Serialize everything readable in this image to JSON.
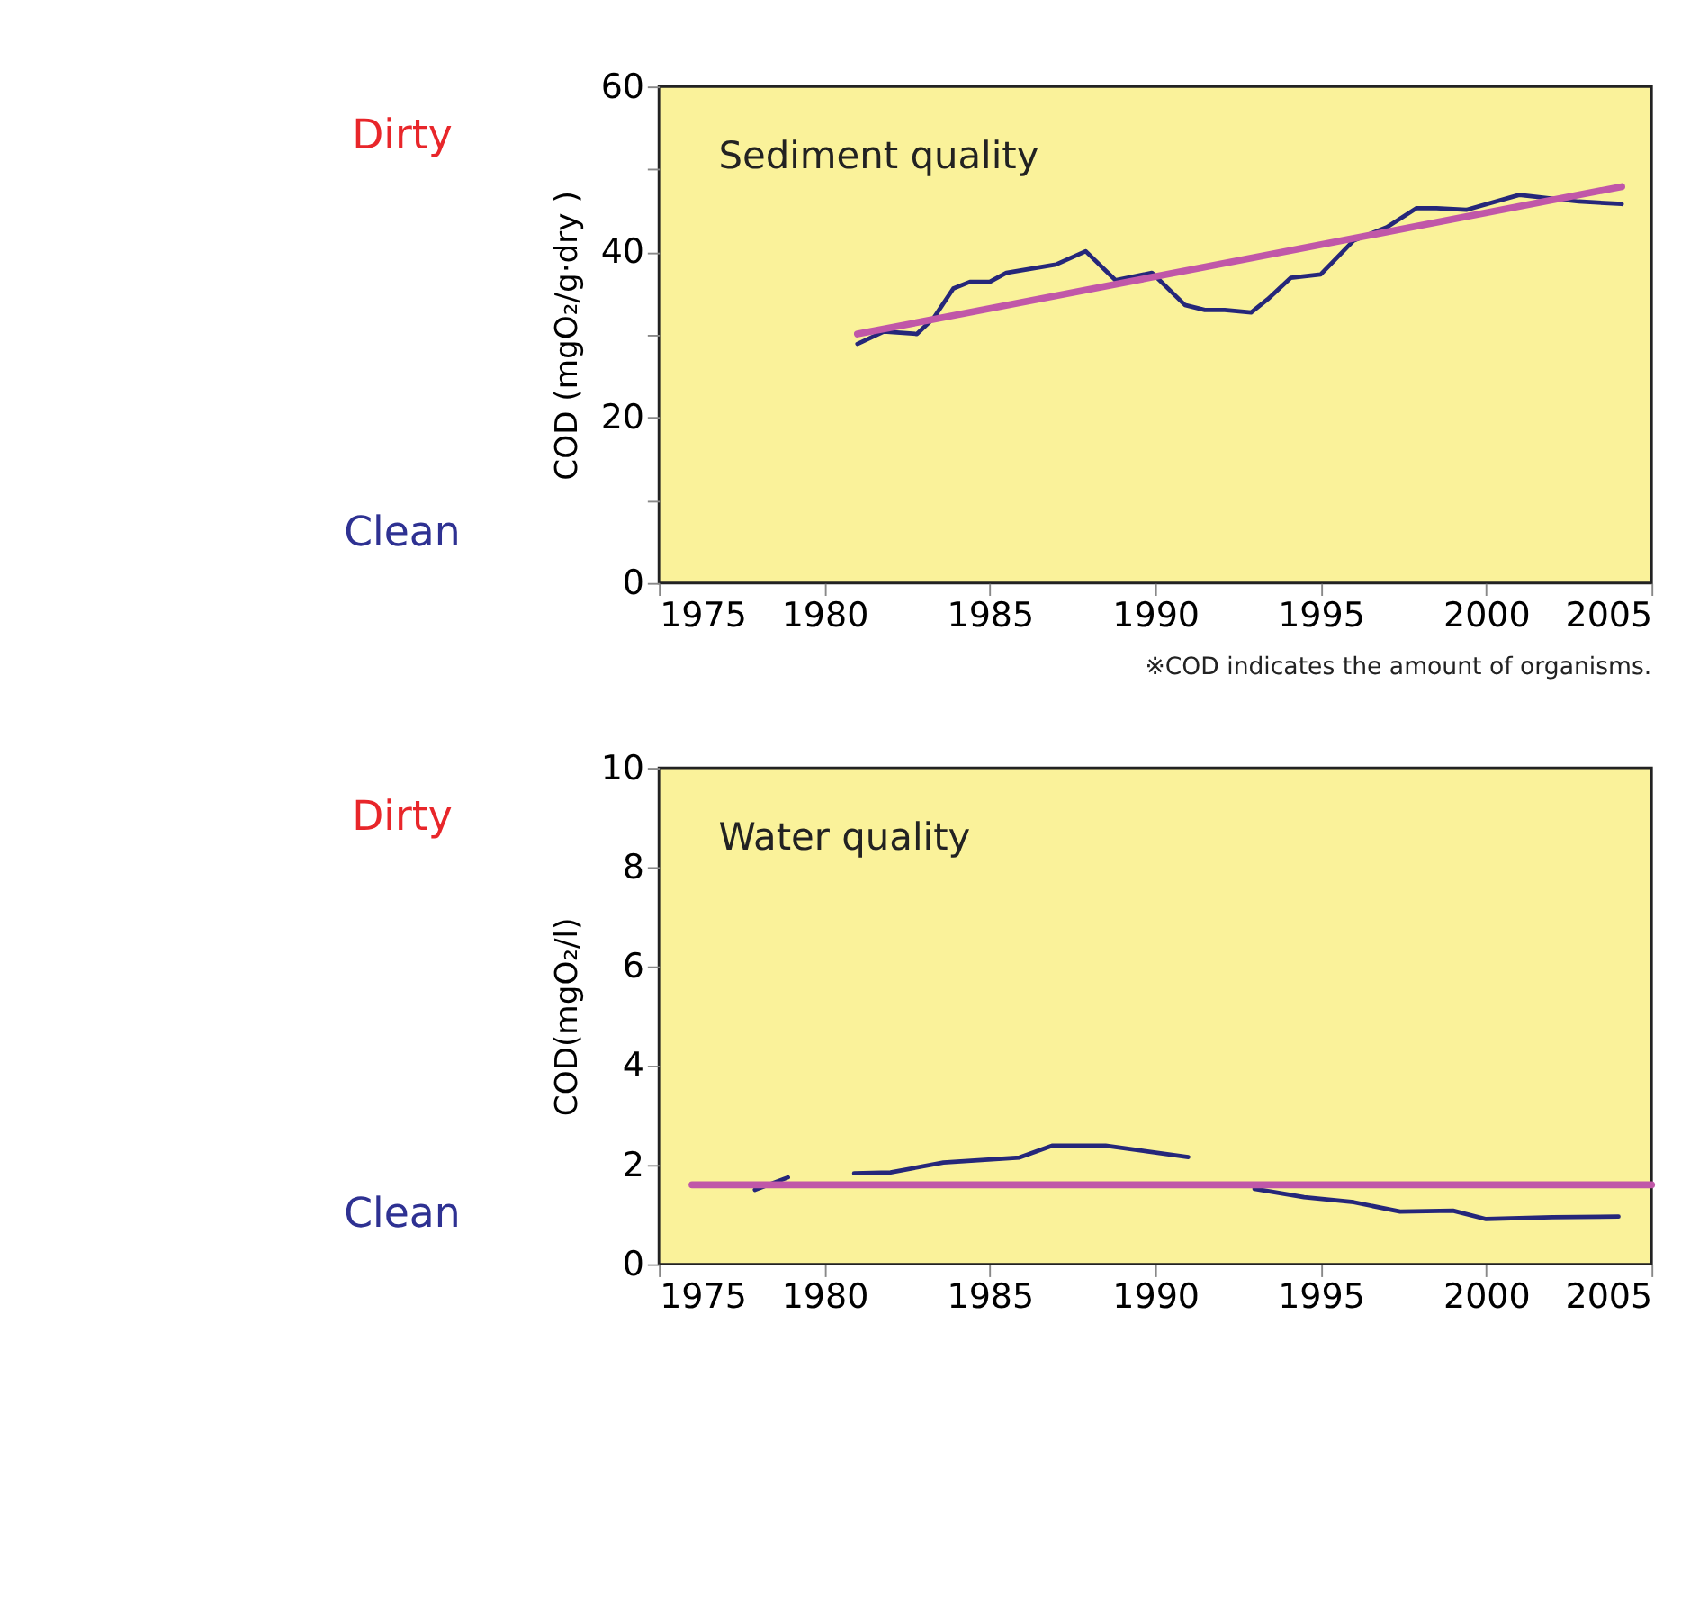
{
  "chart_data": [
    {
      "type": "line",
      "title": "Sediment quality",
      "ylabel": "COD (mgO₂/g·dry )",
      "xlim": [
        1975,
        2005
      ],
      "xticks": [
        1975,
        1980,
        1985,
        1990,
        1995,
        2000,
        2005
      ],
      "ylim": [
        0,
        60
      ],
      "yticks": [
        0,
        {
          "value": 10,
          "label": null
        },
        20,
        {
          "value": 30,
          "label": null
        },
        40,
        {
          "value": 50,
          "label": null
        },
        60
      ],
      "grid": false,
      "line_style": "solid",
      "annotations": [
        "※COD indicates the amount of organisms.",
        "Dirty",
        "Clean"
      ],
      "series": [
        {
          "color": "#25277a",
          "x": [
            1981.0,
            1981.8,
            1982.8,
            1983.3,
            1983.9,
            1984.4,
            1985.0,
            1985.5,
            1987.0,
            1987.9,
            1988.8,
            1989.9,
            1990.9,
            1991.5,
            1992.1,
            1992.9,
            1993.4,
            1994.1,
            1995.0,
            1996.0,
            1997.0,
            1997.9,
            1998.5,
            1999.4,
            2001.0,
            2002.8,
            2004.1
          ],
          "values": [
            28.9,
            30.4,
            30.1,
            32.0,
            35.6,
            36.4,
            36.4,
            37.5,
            38.5,
            40.1,
            36.6,
            37.5,
            33.6,
            33.0,
            33.0,
            32.7,
            34.3,
            36.9,
            37.3,
            41.4,
            43.0,
            45.3,
            45.3,
            45.1,
            46.9,
            46.1,
            45.8
          ]
        },
        {
          "type": "line",
          "color": "#c057a8",
          "x": [
            1981.0,
            2004.1
          ],
          "values": [
            30.1,
            47.9
          ]
        }
      ]
    },
    {
      "type": "line",
      "title": "Water quality",
      "ylabel": "COD(mgO₂/l)",
      "xlim": [
        1975,
        2005
      ],
      "xticks": [
        1975,
        1980,
        1985,
        1990,
        1995,
        2000,
        2005
      ],
      "ylim": [
        0,
        10
      ],
      "yticks": [
        0,
        2,
        4,
        6,
        8,
        10
      ],
      "grid": false,
      "line_style": "solid",
      "annotations": [
        "Dirty",
        "Clean"
      ],
      "series": [
        {
          "color": "#25277a",
          "x": [
            1977.9,
            1978.9,
            1979.9,
            1980.9,
            1982.0,
            1983.6,
            1985.9,
            1986.9,
            1988.5,
            1991.0,
            1992.0,
            1993.0,
            1994.5,
            1996.0,
            1997.4,
            1999.0,
            2000.0,
            2002.0,
            2004.0
          ],
          "values": [
            1.5,
            1.75,
            null,
            1.83,
            1.85,
            2.05,
            2.15,
            2.39,
            2.39,
            2.16,
            null,
            1.52,
            1.35,
            1.25,
            1.06,
            1.08,
            0.91,
            0.95,
            0.96
          ]
        },
        {
          "type": "line",
          "color": "#c057a8",
          "x": [
            1976.0,
            2005.0
          ],
          "values": [
            1.6,
            1.6
          ]
        }
      ]
    }
  ]
}
